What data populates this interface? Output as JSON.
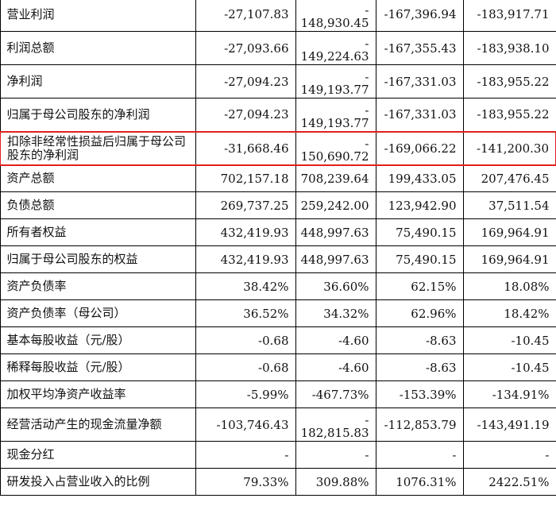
{
  "rows": [
    {
      "label": "营业利润",
      "v1": "-27,107.83",
      "v2_dash": "-",
      "v2": "148,930.45",
      "v3": "-167,396.94",
      "v4": "-183,917.71"
    },
    {
      "label": "利润总额",
      "v1": "-27,093.66",
      "v2_dash": "-",
      "v2": "149,224.63",
      "v3": "-167,355.43",
      "v4": "-183,938.10"
    },
    {
      "label": "净利润",
      "v1": "-27,094.23",
      "v2_dash": "-",
      "v2": "149,193.77",
      "v3": "-167,331.03",
      "v4": "-183,955.22"
    },
    {
      "label": "归属于母公司股东的净利润",
      "v1": "-27,094.23",
      "v2_dash": "-",
      "v2": "149,193.77",
      "v3": "-167,331.03",
      "v4": "-183,955.22"
    },
    {
      "label": "扣除非经常性损益后归属于母公司股东的净利润",
      "v1": "-31,668.46",
      "v2_dash": "-",
      "v2": "150,690.72",
      "v3": "-169,066.22",
      "v4": "-141,200.30"
    },
    {
      "label": "资产总额",
      "v1": "702,157.18",
      "v2": "708,239.64",
      "v3": "199,433.05",
      "v4": "207,476.45"
    },
    {
      "label": "负债总额",
      "v1": "269,737.25",
      "v2": "259,242.00",
      "v3": "123,942.90",
      "v4": "37,511.54"
    },
    {
      "label": "所有者权益",
      "v1": "432,419.93",
      "v2": "448,997.63",
      "v3": "75,490.15",
      "v4": "169,964.91"
    },
    {
      "label": "归属于母公司股东的权益",
      "v1": "432,419.93",
      "v2": "448,997.63",
      "v3": "75,490.15",
      "v4": "169,964.91"
    },
    {
      "label": "资产负债率",
      "v1": "38.42%",
      "v2": "36.60%",
      "v3": "62.15%",
      "v4": "18.08%"
    },
    {
      "label": "资产负债率（母公司）",
      "v1": "36.52%",
      "v2": "34.32%",
      "v3": "62.96%",
      "v4": "18.42%"
    },
    {
      "label": "基本每股收益（元/股）",
      "v1": "-0.68",
      "v2": "-4.60",
      "v3": "-8.63",
      "v4": "-10.45"
    },
    {
      "label": "稀释每股收益（元/股）",
      "v1": "-0.68",
      "v2": "-4.60",
      "v3": "-8.63",
      "v4": "-10.45"
    },
    {
      "label": "加权平均净资产收益率",
      "v1": "-5.99%",
      "v2": "-467.73%",
      "v3": "-153.39%",
      "v4": "-134.91%"
    },
    {
      "label": "经营活动产生的现金流量净额",
      "v1": "-103,746.43",
      "v2_dash": "-",
      "v2": "182,815.83",
      "v3": "-112,853.79",
      "v4": "-143,491.19"
    },
    {
      "label": "现金分红",
      "v1": "-",
      "v2": "-",
      "v3": "-",
      "v4": "-"
    },
    {
      "label": "研发投入占营业收入的比例",
      "v1": "79.33%",
      "v2": "309.88%",
      "v3": "1076.31%",
      "v4": "2422.51%"
    }
  ],
  "highlight": {
    "row_index": 4,
    "color": "#e02020"
  }
}
